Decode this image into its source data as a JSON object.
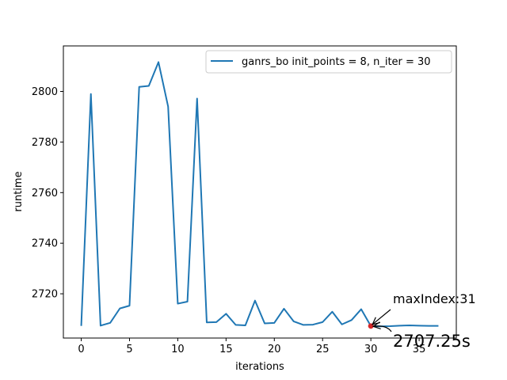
{
  "chart_data": {
    "type": "line",
    "title": "",
    "xlabel": "iterations",
    "ylabel": "runtime",
    "xlim": [
      -1.85,
      38.85
    ],
    "ylim": [
      2702.5,
      2818
    ],
    "xticks": [
      0,
      5,
      10,
      15,
      20,
      25,
      30,
      35
    ],
    "yticks": [
      2720,
      2740,
      2760,
      2780,
      2800
    ],
    "grid": false,
    "legend_position": "top-right",
    "series": [
      {
        "name": "ganrs_bo  init_points = 8, n_iter = 30",
        "color": "#1f77b4",
        "x": [
          0,
          1,
          2,
          3,
          4,
          5,
          6,
          7,
          8,
          9,
          10,
          11,
          12,
          13,
          14,
          15,
          16,
          17,
          18,
          19,
          20,
          21,
          22,
          23,
          24,
          25,
          26,
          27,
          28,
          29,
          30,
          31,
          32,
          33,
          34,
          35,
          36,
          37
        ],
        "y": [
          2707.3,
          2799,
          2707.4,
          2708.5,
          2714.2,
          2715.3,
          2801.8,
          2802.2,
          2811.6,
          2794,
          2716.1,
          2716.9,
          2797.2,
          2708.7,
          2708.8,
          2712.1,
          2707.7,
          2707.5,
          2717.3,
          2708.3,
          2708.5,
          2714.1,
          2709.1,
          2707.7,
          2707.8,
          2708.8,
          2712.9,
          2707.9,
          2709.6,
          2713.9,
          2707.25,
          2707.1,
          2707.2,
          2707.4,
          2707.5,
          2707.4,
          2707.3,
          2707.3
        ]
      }
    ],
    "highlight_point": {
      "x": 30,
      "y": 2707.25,
      "color": "#d62728"
    },
    "annotations": [
      {
        "text": "maxIndex:31",
        "target_x": 30,
        "target_y": 2707.25,
        "size": "small"
      },
      {
        "text": "2707.25s",
        "target_x": 30,
        "target_y": 2707.25,
        "size": "large"
      }
    ]
  }
}
